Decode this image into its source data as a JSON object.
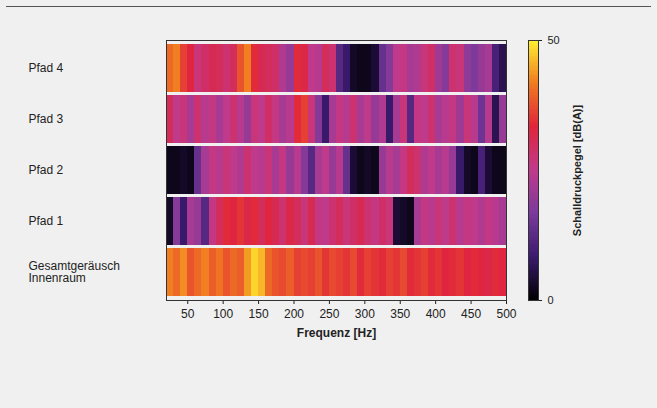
{
  "chart_data": {
    "type": "heatmap",
    "xlabel": "Frequenz [Hz]",
    "xlim": [
      20,
      500
    ],
    "xticks": [
      50,
      100,
      150,
      200,
      250,
      300,
      350,
      400,
      450,
      500
    ],
    "categories": [
      "Pfad 4",
      "Pfad 3",
      "Pfad 2",
      "Pfad 1",
      "Gesamtgeräusch Innenraum"
    ],
    "x_bins": [
      20,
      30,
      40,
      50,
      60,
      70,
      80,
      90,
      100,
      110,
      120,
      130,
      140,
      150,
      160,
      170,
      180,
      190,
      200,
      210,
      220,
      230,
      240,
      250,
      260,
      270,
      280,
      290,
      300,
      310,
      320,
      330,
      340,
      350,
      360,
      370,
      380,
      390,
      400,
      410,
      420,
      430,
      440,
      450,
      460,
      470,
      480,
      490,
      500
    ],
    "cells": [
      [
        40,
        42,
        36,
        33,
        27,
        29,
        31,
        30,
        28,
        30,
        38,
        42,
        34,
        31,
        30,
        29,
        23,
        20,
        34,
        32,
        25,
        24,
        30,
        28,
        12,
        8,
        3,
        2,
        2,
        4,
        14,
        18,
        25,
        26,
        22,
        23,
        27,
        29,
        21,
        18,
        28,
        27,
        19,
        17,
        20,
        22,
        10,
        6
      ],
      [
        30,
        25,
        27,
        22,
        28,
        24,
        26,
        22,
        25,
        28,
        24,
        20,
        27,
        25,
        29,
        26,
        22,
        24,
        34,
        36,
        27,
        18,
        8,
        22,
        26,
        24,
        28,
        22,
        25,
        20,
        23,
        8,
        22,
        27,
        12,
        26,
        25,
        28,
        22,
        24,
        26,
        21,
        27,
        24,
        15,
        24,
        6,
        20
      ],
      [
        2,
        2,
        3,
        2,
        14,
        22,
        26,
        24,
        27,
        25,
        23,
        28,
        25,
        24,
        27,
        22,
        26,
        20,
        24,
        18,
        12,
        22,
        25,
        20,
        24,
        14,
        4,
        2,
        3,
        2,
        20,
        24,
        22,
        26,
        30,
        28,
        23,
        25,
        22,
        24,
        20,
        8,
        3,
        2,
        10,
        4,
        2,
        2
      ],
      [
        3,
        18,
        8,
        22,
        20,
        12,
        26,
        30,
        34,
        33,
        35,
        32,
        34,
        30,
        33,
        31,
        28,
        32,
        30,
        27,
        31,
        26,
        25,
        28,
        30,
        27,
        29,
        31,
        28,
        26,
        29,
        27,
        4,
        3,
        2,
        22,
        26,
        24,
        27,
        25,
        28,
        24,
        26,
        25,
        23,
        26,
        24,
        22
      ],
      [
        42,
        40,
        43,
        38,
        40,
        42,
        39,
        41,
        38,
        40,
        39,
        44,
        48,
        46,
        40,
        38,
        37,
        39,
        36,
        37,
        36,
        38,
        35,
        37,
        36,
        35,
        37,
        34,
        36,
        35,
        34,
        36,
        35,
        37,
        34,
        35,
        36,
        34,
        35,
        33,
        34,
        35,
        33,
        34,
        33,
        32,
        34,
        33
      ]
    ],
    "colorbar": {
      "label": "Schalldruckpegel [dB(A)]",
      "range": [
        0,
        50
      ],
      "ticks": [
        0,
        50
      ]
    }
  }
}
